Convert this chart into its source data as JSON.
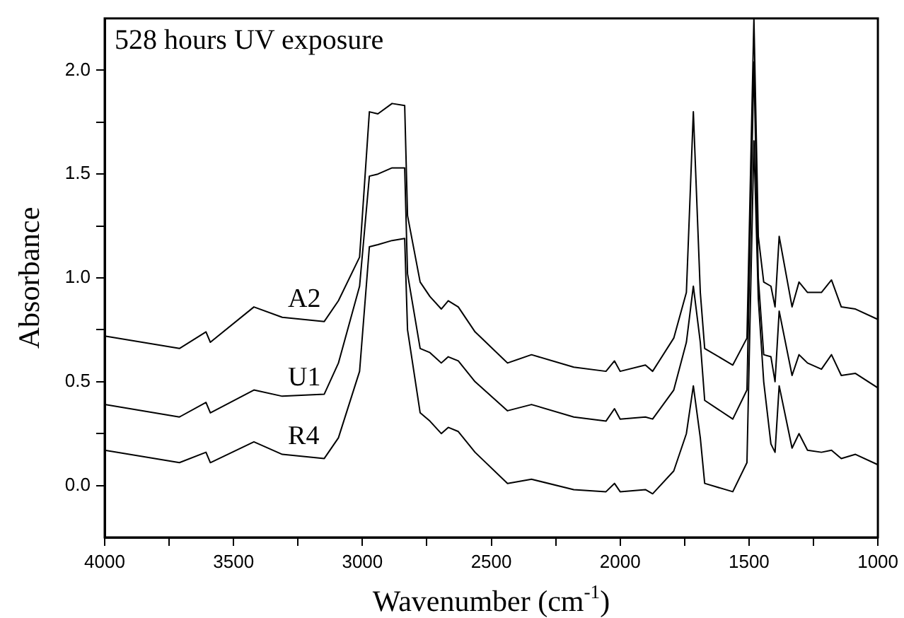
{
  "chart_data": {
    "type": "line",
    "title": "528 hours UV exposure",
    "xlabel": "Wavenumber (cm$^{-1}$)",
    "ylabel": "Absorbance",
    "x": [
      4000,
      3710,
      3607,
      3590,
      3421,
      3311,
      3148,
      3093,
      3011,
      2973,
      2940,
      2885,
      2836,
      2825,
      2776,
      2738,
      2694,
      2667,
      2628,
      2563,
      2437,
      2344,
      2180,
      2055,
      2022,
      2000,
      1902,
      1874,
      1792,
      1743,
      1716,
      1689,
      1672,
      1563,
      1508,
      1481,
      1464,
      1443,
      1415,
      1399,
      1383,
      1333,
      1306,
      1273,
      1219,
      1180,
      1142,
      1087,
      1000
    ],
    "series": [
      {
        "name": "A2",
        "color": "#000000",
        "values": [
          0.72,
          0.66,
          0.74,
          0.69,
          0.86,
          0.81,
          0.79,
          0.89,
          1.1,
          1.8,
          1.79,
          1.84,
          1.83,
          1.3,
          0.98,
          0.91,
          0.85,
          0.89,
          0.86,
          0.74,
          0.59,
          0.63,
          0.57,
          0.55,
          0.6,
          0.55,
          0.58,
          0.55,
          0.71,
          0.93,
          1.8,
          0.93,
          0.66,
          0.58,
          0.71,
          2.25,
          1.2,
          0.98,
          0.96,
          0.86,
          1.2,
          0.86,
          0.98,
          0.93,
          0.93,
          0.99,
          0.86,
          0.85,
          0.8
        ]
      },
      {
        "name": "U1",
        "color": "#000000",
        "values": [
          0.39,
          0.33,
          0.4,
          0.35,
          0.46,
          0.43,
          0.44,
          0.59,
          0.96,
          1.49,
          1.5,
          1.53,
          1.53,
          1.02,
          0.66,
          0.64,
          0.59,
          0.62,
          0.6,
          0.5,
          0.36,
          0.39,
          0.33,
          0.31,
          0.37,
          0.32,
          0.33,
          0.32,
          0.46,
          0.69,
          0.96,
          0.69,
          0.41,
          0.32,
          0.46,
          2.04,
          1.0,
          0.63,
          0.62,
          0.5,
          0.84,
          0.53,
          0.63,
          0.59,
          0.56,
          0.63,
          0.53,
          0.54,
          0.47
        ]
      },
      {
        "name": "R4",
        "color": "#000000",
        "values": [
          0.17,
          0.11,
          0.16,
          0.11,
          0.21,
          0.15,
          0.13,
          0.23,
          0.55,
          1.15,
          1.16,
          1.18,
          1.19,
          0.75,
          0.35,
          0.31,
          0.25,
          0.28,
          0.26,
          0.16,
          0.01,
          0.03,
          -0.02,
          -0.03,
          0.01,
          -0.03,
          -0.02,
          -0.04,
          0.07,
          0.25,
          0.48,
          0.23,
          0.01,
          -0.03,
          0.11,
          1.66,
          0.9,
          0.5,
          0.2,
          0.16,
          0.48,
          0.18,
          0.25,
          0.17,
          0.16,
          0.17,
          0.13,
          0.15,
          0.1
        ]
      }
    ],
    "xlim": [
      4000,
      1000
    ],
    "xticks": [
      4000,
      {
        "value": 3750,
        "label": null
      },
      3500,
      {
        "value": 3250,
        "label": null
      },
      3000,
      {
        "value": 2750,
        "label": null
      },
      2500,
      {
        "value": 2250,
        "label": null
      },
      2000,
      {
        "value": 1750,
        "label": null
      },
      1500,
      {
        "value": 1250,
        "label": null
      },
      1000
    ],
    "ylim": [
      -0.25,
      2.25
    ],
    "yticks": [
      {
        "value": 0,
        "label": "0.0"
      },
      {
        "value": 0.25,
        "label": null
      },
      {
        "value": 0.5,
        "label": "0.5"
      },
      {
        "value": 0.75,
        "label": null
      },
      {
        "value": 1,
        "label": "1.0"
      },
      {
        "value": 1.25,
        "label": null
      },
      {
        "value": 1.5,
        "label": "1.5"
      },
      {
        "value": 1.75,
        "label": null
      },
      {
        "value": 2,
        "label": "2.0"
      }
    ],
    "grid": false,
    "legend": false,
    "marker": "none",
    "line_style": "solid"
  }
}
